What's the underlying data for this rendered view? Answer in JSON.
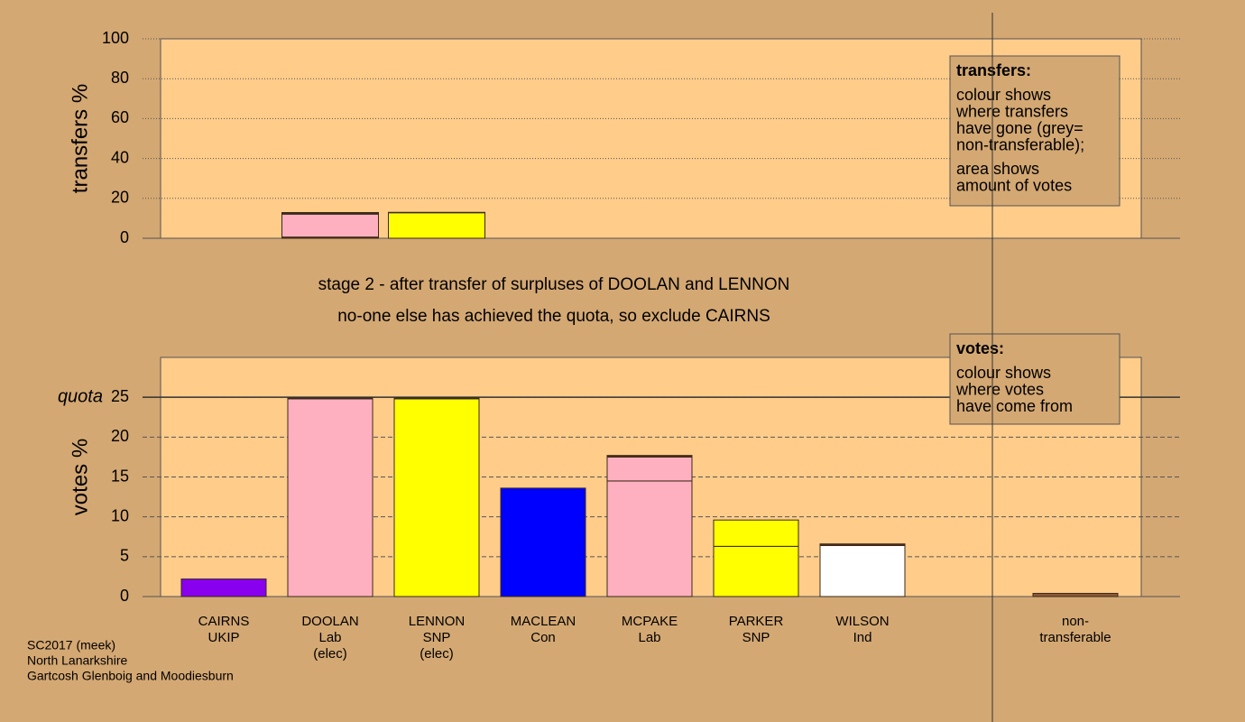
{
  "stage": [
    "stage 2 - after transfer of surpluses of DOOLAN and LENNON",
    "no-one else has achieved the quota, so exclude CAIRNS"
  ],
  "footer": [
    "SC2017 (meek)",
    "North Lanarkshire",
    "Gartcosh Glenboig and Moodiesburn"
  ],
  "chart_data": [
    {
      "type": "stacked_bar",
      "y_label": "transfers %",
      "ylim": [
        0,
        100
      ],
      "yticks": [
        0,
        20,
        40,
        60,
        80,
        100
      ],
      "grid": true,
      "legend": {
        "title": "transfers:",
        "paragraphs": [
          [
            "colour shows",
            "where transfers",
            "have gone (grey=",
            "non-transferable);"
          ],
          [
            "area shows",
            "amount of votes"
          ]
        ]
      },
      "bars": [
        null,
        [
          {
            "color": "#5a2a1a",
            "value": 0.6
          },
          {
            "color": "#ffb0c0",
            "value": 11.5
          },
          {
            "color": "#66cc66",
            "value": 0.4
          },
          {
            "color": "#6666ff",
            "value": 0.4
          }
        ],
        [
          {
            "color": "#ffff00",
            "value": 12.8
          },
          {
            "color": "#66cc66",
            "value": 0.2
          }
        ],
        null,
        null,
        null,
        null,
        null,
        null
      ]
    },
    {
      "type": "stacked_bar",
      "y_label": "votes %",
      "ylim": [
        0,
        30
      ],
      "yticks": [
        0,
        5,
        10,
        15,
        20,
        25
      ],
      "grid": true,
      "quota": {
        "label": "quota",
        "value": 25
      },
      "legend": {
        "title": "votes:",
        "paragraphs": [
          [
            "colour shows",
            "where votes",
            "have come from"
          ]
        ]
      },
      "categories": [
        [
          "CAIRNS",
          "UKIP"
        ],
        [
          "DOOLAN",
          "Lab",
          "(elec)"
        ],
        [
          "LENNON",
          "SNP",
          "(elec)"
        ],
        [
          "MACLEAN",
          "Con"
        ],
        [
          "MCPAKE",
          "Lab"
        ],
        [
          "PARKER",
          "SNP"
        ],
        [
          "WILSON",
          "Ind"
        ],
        null,
        [
          "non-",
          "transferable"
        ]
      ],
      "bars": [
        [
          {
            "color": "#8800ee",
            "value": 2.2
          }
        ],
        [
          {
            "color": "#ffb0c0",
            "value": 24.8
          },
          {
            "color": "#66cc66",
            "value": 0.1
          }
        ],
        [
          {
            "color": "#ffff00",
            "value": 24.8
          },
          {
            "color": "#66cc66",
            "value": 0.1
          }
        ],
        [
          {
            "color": "#0000ff",
            "value": 13.6
          }
        ],
        [
          {
            "color": "#ffb0c0",
            "value": 14.5
          },
          {
            "color": "#ffb0c0",
            "value": 3.0
          },
          {
            "color": "#5a2a1a",
            "value": 0.2
          }
        ],
        [
          {
            "color": "#ffff00",
            "value": 6.3
          },
          {
            "color": "#ffff00",
            "value": 3.3
          }
        ],
        [
          {
            "color": "#ffffff",
            "value": 6.4
          },
          {
            "color": "#5a2a1a",
            "value": 0.2
          }
        ],
        null,
        [
          {
            "color": "#8a5a3a",
            "value": 0.4
          }
        ]
      ]
    }
  ]
}
